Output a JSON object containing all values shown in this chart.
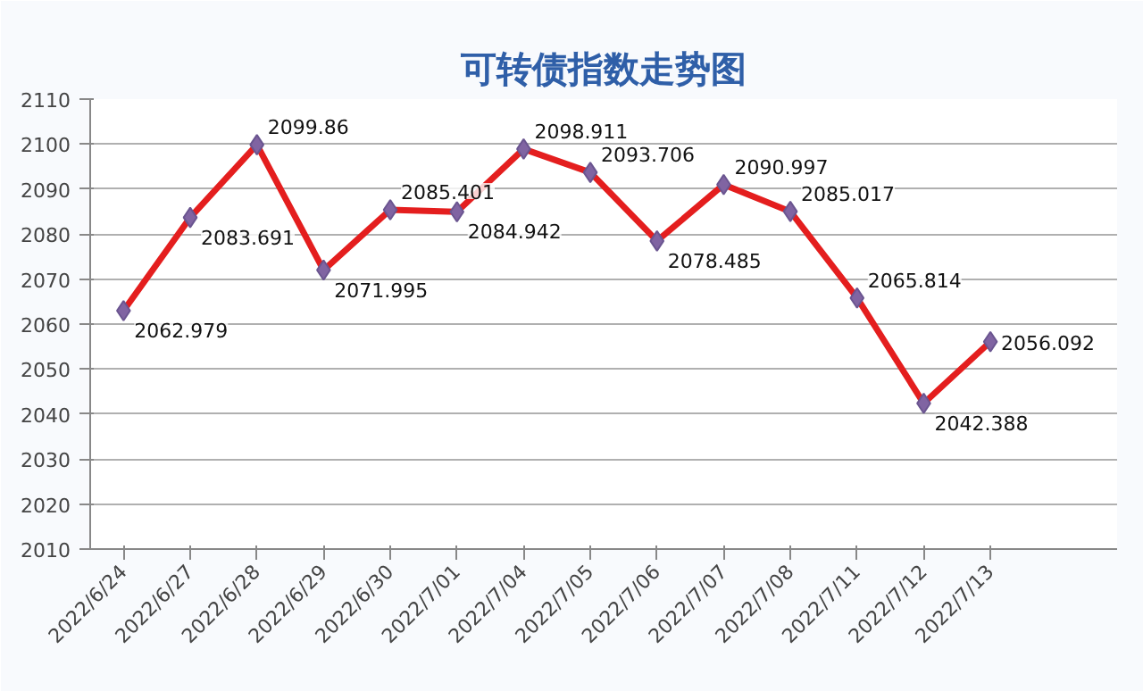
{
  "chart_data": {
    "type": "line",
    "title": "可转债指数走势图",
    "categories": [
      "2022/6/24",
      "2022/6/27",
      "2022/6/28",
      "2022/6/29",
      "2022/6/30",
      "2022/7/01",
      "2022/7/04",
      "2022/7/05",
      "2022/7/06",
      "2022/7/07",
      "2022/7/08",
      "2022/7/11",
      "2022/7/12",
      "2022/7/13"
    ],
    "series": [
      {
        "color": "#e41e1e",
        "values": [
          2062.979,
          2083.691,
          2099.86,
          2071.995,
          2085.401,
          2084.942,
          2098.911,
          2093.706,
          2078.485,
          2090.997,
          2085.017,
          2065.814,
          2042.388,
          2056.092
        ]
      }
    ],
    "ylim": [
      2010,
      2110
    ],
    "yticks": [
      2010,
      2020,
      2030,
      2040,
      2050,
      2060,
      2070,
      2080,
      2090,
      2100,
      2110
    ],
    "grid": "y",
    "marker": "diamond",
    "line_style": "solid",
    "data_labels": true
  }
}
